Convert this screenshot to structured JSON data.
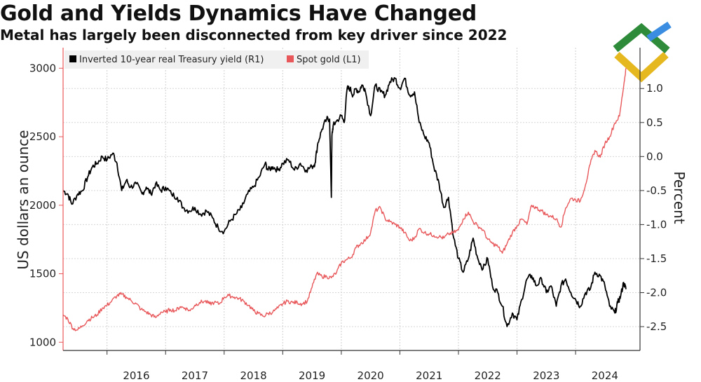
{
  "title": "Gold and Yields Dynamics Have Changed",
  "subtitle": "Metal has largely been disconnected from key driver since 2022",
  "brand": {
    "icon": "checkmark-logo-icon",
    "colors": [
      "#2e8b3a",
      "#3a8de0",
      "#e6b820"
    ]
  },
  "chart_data": {
    "type": "line",
    "title": "Gold and Yields Dynamics Have Changed",
    "ylabel_left": "US dollars an ounce",
    "ylabel_right": "Percent",
    "x_ticks": [
      "2016",
      "2017",
      "2018",
      "2019",
      "2020",
      "2021",
      "2022",
      "2023",
      "2024"
    ],
    "x_range": [
      2015.25,
      2025.1
    ],
    "y_left_ticks": [
      "1000",
      "1500",
      "2000",
      "2500",
      "3000"
    ],
    "y_left_range": [
      940,
      3150
    ],
    "y_right_ticks": [
      "1.0",
      "0.5",
      "0.0",
      "-0.5",
      "-1.0",
      "-1.5",
      "-2.0",
      "-2.5"
    ],
    "y_right_range": [
      -2.85,
      1.6
    ],
    "legend": [
      {
        "label": "Inverted 10-year real Treasury yield (R1)",
        "color": "#000000"
      },
      {
        "label": "Spot gold (L1)",
        "color": "#e8575a"
      }
    ],
    "series": [
      {
        "name": "Inverted 10-year real Treasury yield (R1)",
        "axis": "right",
        "color": "#000000",
        "x": [
          2015.25,
          2015.33,
          2015.4,
          2015.5,
          2015.58,
          2015.67,
          2015.75,
          2015.83,
          2015.92,
          2016.0,
          2016.1,
          2016.17,
          2016.25,
          2016.33,
          2016.4,
          2016.5,
          2016.6,
          2016.67,
          2016.75,
          2016.83,
          2016.92,
          2017.0,
          2017.1,
          2017.2,
          2017.3,
          2017.4,
          2017.5,
          2017.6,
          2017.7,
          2017.8,
          2017.9,
          2018.0,
          2018.1,
          2018.2,
          2018.3,
          2018.4,
          2018.5,
          2018.6,
          2018.7,
          2018.75,
          2018.83,
          2018.92,
          2019.0,
          2019.1,
          2019.2,
          2019.3,
          2019.4,
          2019.5,
          2019.55,
          2019.6,
          2019.67,
          2019.75,
          2019.8,
          2019.83,
          2019.84,
          2019.86,
          2019.9,
          2020.0,
          2020.05,
          2020.1,
          2020.15,
          2020.2,
          2020.25,
          2020.3,
          2020.35,
          2020.4,
          2020.5,
          2020.58,
          2020.67,
          2020.75,
          2020.83,
          2020.92,
          2021.0,
          2021.08,
          2021.17,
          2021.25,
          2021.33,
          2021.42,
          2021.5,
          2021.58,
          2021.67,
          2021.75,
          2021.83,
          2021.92,
          2022.0,
          2022.08,
          2022.17,
          2022.25,
          2022.33,
          2022.42,
          2022.5,
          2022.58,
          2022.67,
          2022.75,
          2022.83,
          2022.92,
          2023.0,
          2023.08,
          2023.17,
          2023.25,
          2023.33,
          2023.42,
          2023.5,
          2023.58,
          2023.67,
          2023.75,
          2023.83,
          2023.92,
          2024.0,
          2024.08,
          2024.17,
          2024.25,
          2024.33,
          2024.42,
          2024.5,
          2024.58,
          2024.67,
          2024.72,
          2024.77,
          2024.82,
          2024.86
        ],
        "values": [
          -0.5,
          -0.55,
          -0.7,
          -0.55,
          -0.5,
          -0.3,
          -0.15,
          -0.1,
          0.0,
          -0.05,
          0.05,
          -0.1,
          -0.5,
          -0.35,
          -0.45,
          -0.4,
          -0.55,
          -0.45,
          -0.55,
          -0.4,
          -0.5,
          -0.45,
          -0.55,
          -0.6,
          -0.75,
          -0.8,
          -0.75,
          -0.85,
          -0.8,
          -0.9,
          -1.05,
          -1.1,
          -0.95,
          -0.85,
          -0.75,
          -0.55,
          -0.45,
          -0.3,
          -0.1,
          -0.2,
          -0.15,
          -0.2,
          -0.1,
          -0.05,
          -0.2,
          -0.1,
          -0.2,
          -0.15,
          -0.1,
          0.2,
          0.4,
          0.55,
          0.55,
          -0.6,
          0.3,
          0.45,
          0.5,
          0.6,
          0.5,
          1.0,
          1.0,
          0.9,
          1.0,
          0.95,
          1.05,
          1.0,
          0.6,
          1.05,
          0.95,
          0.9,
          1.1,
          1.15,
          1.0,
          1.15,
          0.9,
          0.95,
          0.5,
          0.3,
          0.2,
          -0.15,
          -0.4,
          -0.75,
          -0.6,
          -1.2,
          -1.5,
          -1.7,
          -1.5,
          -1.2,
          -1.5,
          -1.65,
          -1.5,
          -1.9,
          -2.0,
          -2.2,
          -2.5,
          -2.3,
          -2.4,
          -2.1,
          -1.8,
          -1.75,
          -1.9,
          -1.8,
          -2.0,
          -1.9,
          -2.2,
          -1.9,
          -1.8,
          -2.0,
          -2.1,
          -2.2,
          -2.0,
          -1.95,
          -1.7,
          -1.75,
          -1.9,
          -2.2,
          -2.3,
          -2.15,
          -2.05,
          -1.85,
          -1.95
        ]
      },
      {
        "name": "Spot gold (L1)",
        "axis": "left",
        "color": "#e8575a",
        "x": [
          2015.25,
          2015.33,
          2015.42,
          2015.5,
          2015.58,
          2015.67,
          2015.75,
          2015.83,
          2015.92,
          2016.0,
          2016.08,
          2016.17,
          2016.25,
          2016.33,
          2016.42,
          2016.5,
          2016.58,
          2016.67,
          2016.75,
          2016.83,
          2016.92,
          2017.0,
          2017.08,
          2017.17,
          2017.25,
          2017.33,
          2017.42,
          2017.5,
          2017.58,
          2017.67,
          2017.75,
          2017.83,
          2017.92,
          2018.0,
          2018.08,
          2018.17,
          2018.25,
          2018.33,
          2018.42,
          2018.5,
          2018.58,
          2018.67,
          2018.75,
          2018.83,
          2018.92,
          2019.0,
          2019.08,
          2019.17,
          2019.25,
          2019.33,
          2019.42,
          2019.5,
          2019.58,
          2019.67,
          2019.75,
          2019.83,
          2019.92,
          2020.0,
          2020.08,
          2020.17,
          2020.25,
          2020.33,
          2020.42,
          2020.5,
          2020.58,
          2020.67,
          2020.75,
          2020.83,
          2020.92,
          2021.0,
          2021.08,
          2021.17,
          2021.25,
          2021.33,
          2021.42,
          2021.5,
          2021.58,
          2021.67,
          2021.75,
          2021.83,
          2021.92,
          2022.0,
          2022.08,
          2022.17,
          2022.25,
          2022.33,
          2022.42,
          2022.5,
          2022.58,
          2022.67,
          2022.75,
          2022.83,
          2022.92,
          2023.0,
          2023.08,
          2023.17,
          2023.25,
          2023.33,
          2023.42,
          2023.5,
          2023.58,
          2023.67,
          2023.75,
          2023.83,
          2023.92,
          2024.0,
          2024.08,
          2024.17,
          2024.25,
          2024.33,
          2024.42,
          2024.5,
          2024.58,
          2024.67,
          2024.75,
          2024.83,
          2024.86
        ],
        "values": [
          1200,
          1170,
          1100,
          1090,
          1120,
          1160,
          1180,
          1200,
          1250,
          1270,
          1300,
          1340,
          1350,
          1330,
          1300,
          1280,
          1240,
          1220,
          1200,
          1180,
          1220,
          1220,
          1240,
          1230,
          1260,
          1250,
          1230,
          1270,
          1290,
          1300,
          1280,
          1290,
          1280,
          1330,
          1340,
          1330,
          1320,
          1300,
          1270,
          1230,
          1210,
          1190,
          1210,
          1220,
          1250,
          1280,
          1300,
          1290,
          1290,
          1280,
          1300,
          1400,
          1500,
          1480,
          1480,
          1470,
          1510,
          1580,
          1600,
          1620,
          1690,
          1720,
          1750,
          1800,
          1960,
          1980,
          1900,
          1880,
          1860,
          1840,
          1800,
          1740,
          1760,
          1830,
          1800,
          1790,
          1780,
          1770,
          1760,
          1790,
          1800,
          1820,
          1900,
          1950,
          1880,
          1850,
          1820,
          1750,
          1720,
          1700,
          1650,
          1720,
          1800,
          1850,
          1900,
          1860,
          2000,
          1980,
          1960,
          1930,
          1920,
          1900,
          1840,
          1980,
          2050,
          2040,
          2030,
          2150,
          2300,
          2400,
          2350,
          2450,
          2500,
          2600,
          2650,
          2900,
          3000
        ]
      }
    ]
  }
}
